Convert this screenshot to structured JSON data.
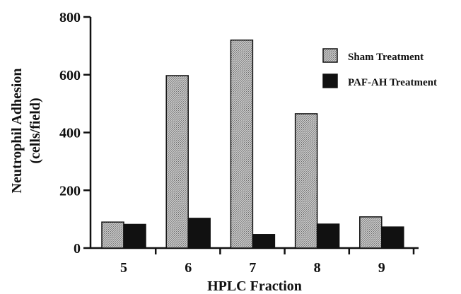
{
  "chart_data": {
    "type": "bar",
    "categories": [
      "5",
      "6",
      "7",
      "8",
      "9"
    ],
    "series": [
      {
        "name": "Sham Treatment",
        "values": [
          90,
          597,
          720,
          465,
          108
        ],
        "color": "#b3b3b3",
        "pattern": "stipple"
      },
      {
        "name": "PAF-AH Treatment",
        "values": [
          82,
          103,
          47,
          83,
          73
        ],
        "color": "#111111",
        "pattern": "solid"
      }
    ],
    "title": "",
    "xlabel": "HPLC Fraction",
    "ylabel_lines": [
      "Neutrophil Adhesion",
      "(cells/field)"
    ],
    "ylim": [
      0,
      800
    ],
    "yticks": [
      "0",
      "200",
      "400",
      "600",
      "800"
    ],
    "grid": false,
    "legend_position": "top-right"
  }
}
